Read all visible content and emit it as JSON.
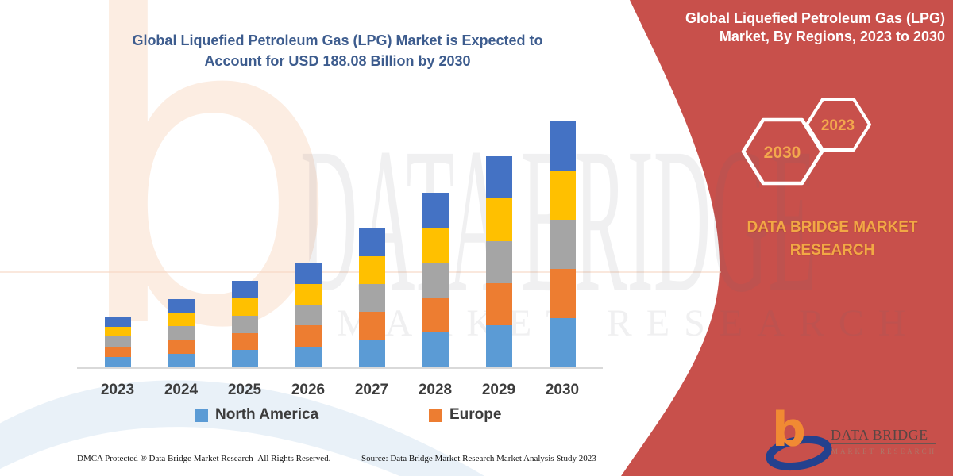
{
  "left_title": "Global Liquefied Petroleum Gas (LPG) Market is Expected to Account for USD 188.08 Billion by 2030",
  "right_panel": {
    "title": "Global Liquefied Petroleum Gas (LPG) Market, By Regions, 2023 to 2030",
    "hexagons": [
      {
        "label": "2030"
      },
      {
        "label": "2023"
      }
    ],
    "brand_caption": "DATA BRIDGE MARKET RESEARCH"
  },
  "colors": {
    "panel_red": "#C8504B",
    "title_steel_blue": "#3D5C8E",
    "caption_gold": "#F2A845",
    "hex_year_text": "#F3A74D",
    "logo_orange": "#F18A33",
    "logo_navy": "#24418E",
    "axis_line": "#D9D9D9"
  },
  "legend": {
    "items": [
      {
        "label": "North America",
        "color": "#5B9BD5"
      },
      {
        "label": "Europe",
        "color": "#ED7D31"
      }
    ]
  },
  "chart_data": {
    "type": "bar",
    "stacked": true,
    "title": "Global Liquefied Petroleum Gas (LPG) Market, By Regions, 2023 to 2030",
    "unit": "USD Billion",
    "categories": [
      "2023",
      "2024",
      "2025",
      "2026",
      "2027",
      "2028",
      "2029",
      "2030"
    ],
    "series": [
      {
        "name": "North America",
        "color": "#5B9BD5",
        "values": [
          7.8,
          10.5,
          13.2,
          16.0,
          21.3,
          26.7,
          32.3,
          37.62
        ]
      },
      {
        "name": "Europe",
        "color": "#ED7D31",
        "values": [
          7.8,
          10.5,
          13.2,
          16.0,
          21.3,
          26.7,
          32.3,
          37.62
        ]
      },
      {
        "name": "",
        "color": "#A5A5A5",
        "values": [
          7.8,
          10.5,
          13.2,
          16.0,
          21.3,
          26.7,
          32.3,
          37.62
        ]
      },
      {
        "name": "",
        "color": "#FFC000",
        "values": [
          7.8,
          10.5,
          13.2,
          16.0,
          21.3,
          26.7,
          32.3,
          37.62
        ]
      },
      {
        "name": "",
        "color": "#4472C4",
        "values": [
          7.8,
          10.5,
          13.2,
          16.0,
          21.3,
          26.7,
          32.3,
          37.62
        ]
      }
    ],
    "totals_usd_billion": [
      39.0,
      52.5,
      66.0,
      80.0,
      106.5,
      133.5,
      161.5,
      188.08
    ],
    "value_2030_usd_billion": 188.08,
    "xlabel": "",
    "ylabel": "",
    "ylim": [
      0,
      200
    ],
    "grid": false,
    "y_axis_visible": false,
    "legend_position": "bottom"
  },
  "watermark": {
    "letter": "b",
    "big_text": "DATA BRIDGE",
    "sub_text": "MARKET RESEARCH"
  },
  "logo": {
    "mark_letter": "b",
    "brand": "DATA BRIDGE",
    "sub": "MARKET RESEARCH"
  },
  "footer": {
    "dmca": "DMCA Protected ® Data Bridge Market Research-  All Rights Reserved.",
    "source": "Source: Data Bridge Market Research  Market Analysis Study 2023"
  }
}
